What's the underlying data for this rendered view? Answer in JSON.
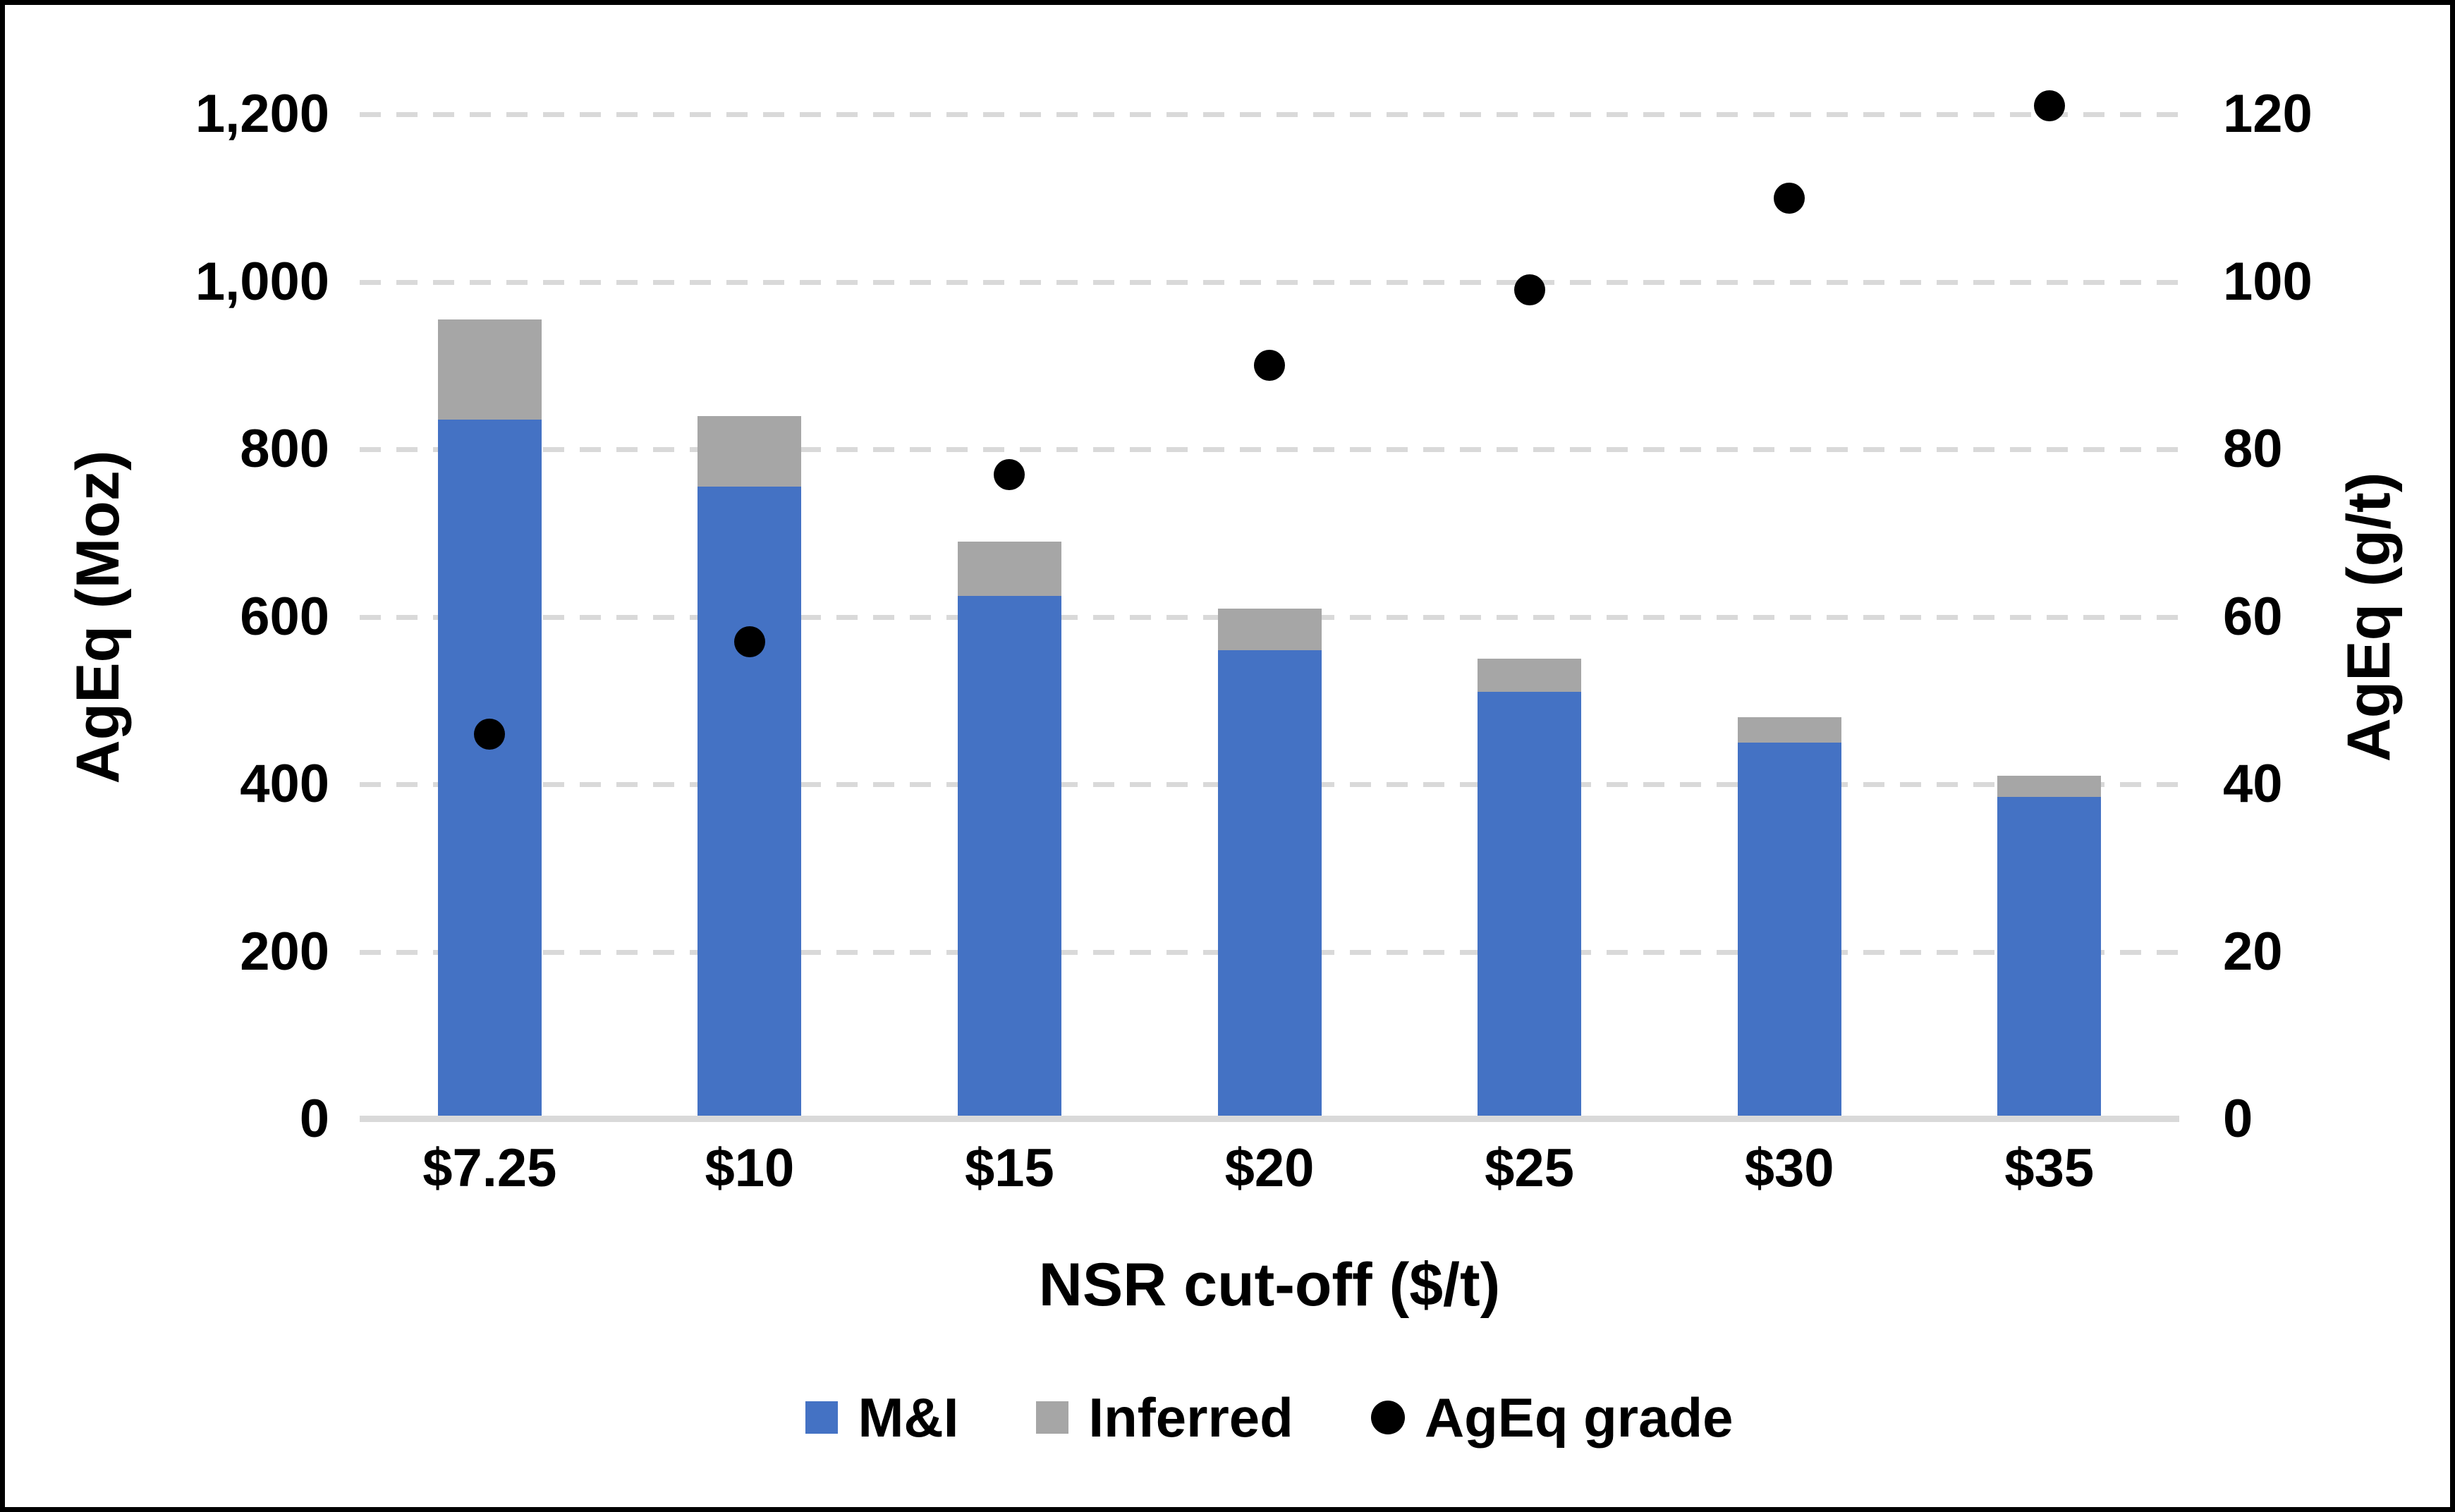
{
  "chart_data": {
    "type": "bar",
    "subtype": "stacked-bar-with-scatter-secondary-axis",
    "categories": [
      "$7.25",
      "$10",
      "$15",
      "$20",
      "$25",
      "$30",
      "$35"
    ],
    "series": [
      {
        "name": "M&I",
        "type": "bar",
        "stacked": true,
        "axis": "left",
        "color": "#4472C4",
        "values": [
          835,
          755,
          625,
          560,
          510,
          450,
          385
        ]
      },
      {
        "name": "Inferred",
        "type": "bar",
        "stacked": true,
        "axis": "left",
        "color": "#A6A6A6",
        "values": [
          120,
          85,
          65,
          50,
          40,
          30,
          25
        ]
      },
      {
        "name": "AgEq grade",
        "type": "scatter",
        "axis": "right",
        "color": "#000000",
        "values": [
          46,
          57,
          77,
          90,
          99,
          110,
          121
        ]
      }
    ],
    "left_axis": {
      "title": "AgEq (Moz)",
      "min": 0,
      "max": 1200,
      "step": 200,
      "tick_labels": [
        "0",
        "200",
        "400",
        "600",
        "800",
        "1,000",
        "1,200"
      ]
    },
    "right_axis": {
      "title": "AgEq (g/t)",
      "min": 0,
      "max": 120,
      "step": 20,
      "tick_labels": [
        "0",
        "20",
        "40",
        "60",
        "80",
        "100",
        "120"
      ]
    },
    "x_axis": {
      "title": "NSR cut-off ($/t)"
    },
    "legend": {
      "position": "bottom",
      "items": [
        {
          "label": "M&I",
          "marker": "square",
          "color": "#4472C4"
        },
        {
          "label": "Inferred",
          "marker": "square",
          "color": "#A6A6A6"
        },
        {
          "label": "AgEq grade",
          "marker": "circle",
          "color": "#000000"
        }
      ]
    },
    "gridlines": {
      "style": "dashed",
      "color": "#D9D9D9"
    },
    "frame_color": "#000000",
    "background_color": "#FFFFFF"
  }
}
